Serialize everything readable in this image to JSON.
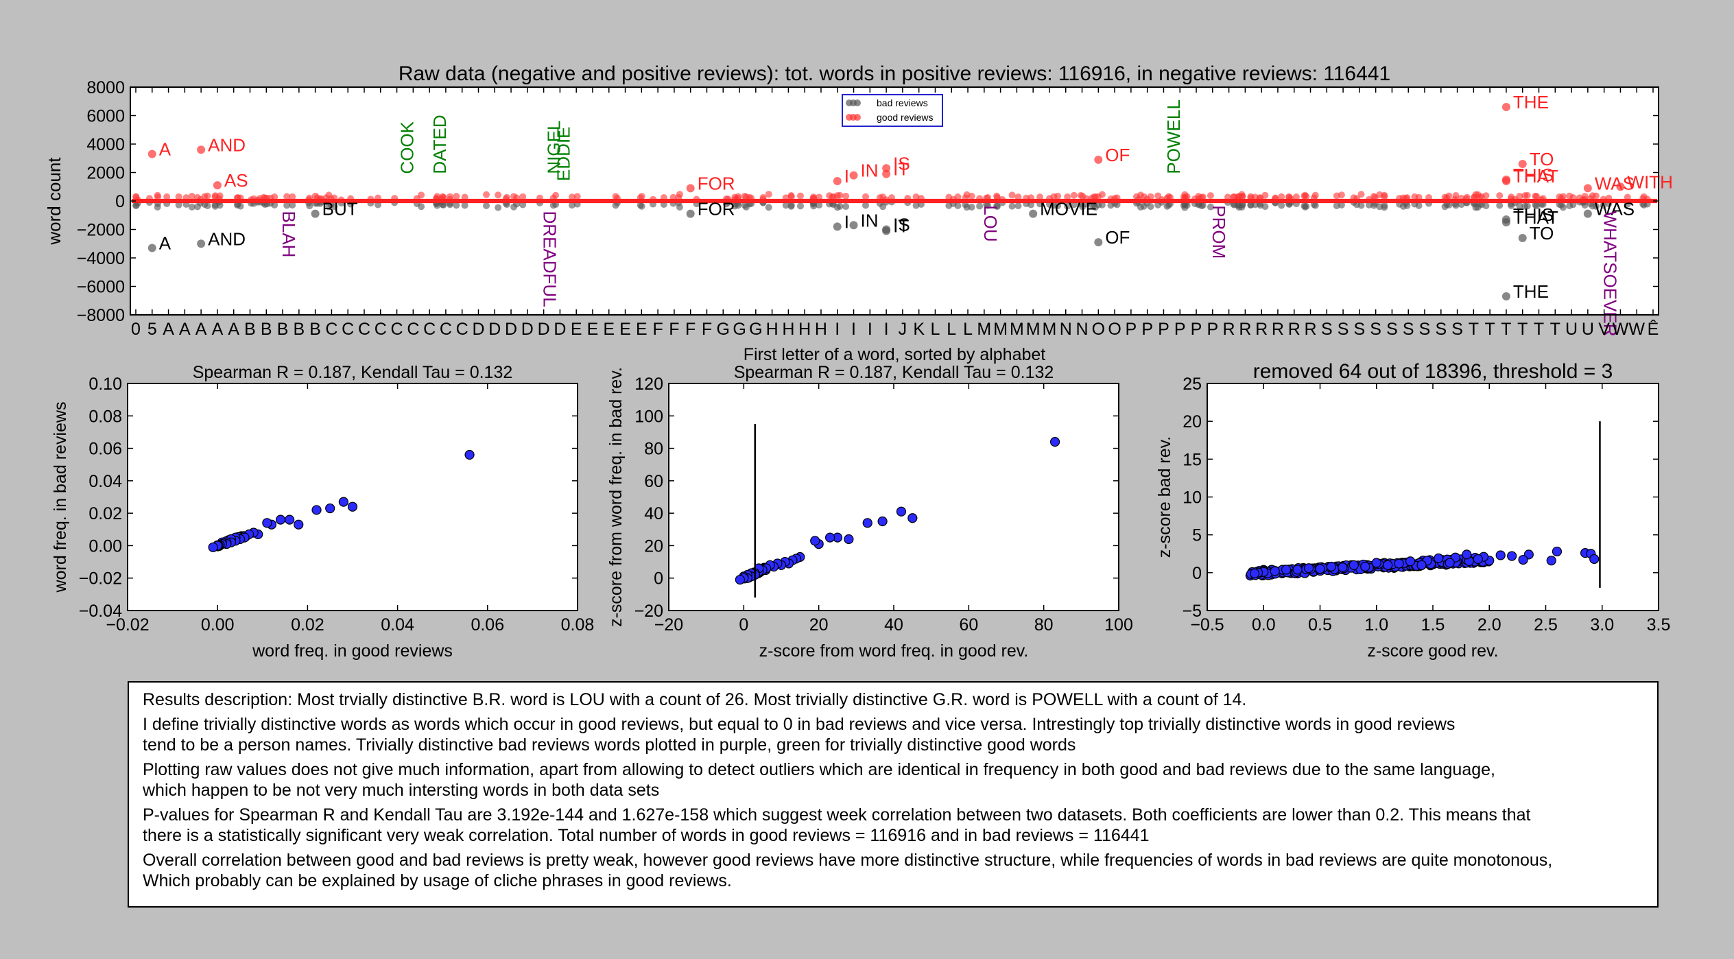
{
  "chart_data": [
    {
      "type": "scatter",
      "title": "Raw data (negative and positive reviews): tot. words in positive reviews: 116916, in negative reviews: 116441",
      "xlabel": "First letter of a word, sorted by alphabet",
      "ylabel": "word count",
      "ylim": [
        -8000,
        8000
      ],
      "yticks": [
        "8000",
        "6000",
        "4000",
        "2000",
        "0",
        "−2000",
        "−4000",
        "−6000",
        "−8000"
      ],
      "xtick_labels": [
        "0",
        "5",
        "A",
        "A",
        "A",
        "A",
        "A",
        "B",
        "B",
        "B",
        "B",
        "B",
        "C",
        "C",
        "C",
        "C",
        "C",
        "C",
        "C",
        "C",
        "C",
        "D",
        "D",
        "D",
        "D",
        "D",
        "D",
        "E",
        "E",
        "E",
        "E",
        "E",
        "F",
        "F",
        "F",
        "F",
        "G",
        "G",
        "G",
        "H",
        "H",
        "H",
        "H",
        "I",
        "I",
        "I",
        "I",
        "J",
        "K",
        "L",
        "L",
        "L",
        "M",
        "M",
        "M",
        "M",
        "M",
        "N",
        "N",
        "O",
        "O",
        "P",
        "P",
        "P",
        "P",
        "P",
        "P",
        "R",
        "R",
        "R",
        "R",
        "R",
        "R",
        "S",
        "S",
        "S",
        "S",
        "S",
        "S",
        "S",
        "S",
        "S",
        "T",
        "T",
        "T",
        "T",
        "T",
        "T",
        "U",
        "U",
        "V",
        "W",
        "W",
        "Ê"
      ],
      "legend": {
        "placement": "top-center",
        "entries": [
          "bad reviews",
          "good reviews"
        ]
      },
      "series_colors": {
        "bad reviews": "#555555",
        "good reviews": "#ff3333"
      },
      "annotations": [
        {
          "text": "A",
          "x": 1,
          "y": 3300,
          "color": "#ff2222"
        },
        {
          "text": "AND",
          "x": 4,
          "y": 3600,
          "color": "#ff2222"
        },
        {
          "text": "AS",
          "x": 5,
          "y": 1100,
          "color": "#ff2222"
        },
        {
          "text": "FOR",
          "x": 34,
          "y": 900,
          "color": "#ff2222"
        },
        {
          "text": "I",
          "x": 43,
          "y": 1400,
          "color": "#ff2222"
        },
        {
          "text": "IN",
          "x": 44,
          "y": 1800,
          "color": "#ff2222"
        },
        {
          "text": "IS",
          "x": 46,
          "y": 2300,
          "color": "#ff2222"
        },
        {
          "text": "IT",
          "x": 46,
          "y": 1900,
          "color": "#ff2222"
        },
        {
          "text": "OF",
          "x": 59,
          "y": 2900,
          "color": "#ff2222"
        },
        {
          "text": "THE",
          "x": 84,
          "y": 6600,
          "color": "#ff2222"
        },
        {
          "text": "TO",
          "x": 85,
          "y": 2600,
          "color": "#ff2222"
        },
        {
          "text": "THIS",
          "x": 84,
          "y": 1500,
          "color": "#ff2222"
        },
        {
          "text": "THAT",
          "x": 84,
          "y": 1400,
          "color": "#ff2222"
        },
        {
          "text": "WAS",
          "x": 89,
          "y": 900,
          "color": "#ff2222"
        },
        {
          "text": "WITH",
          "x": 91,
          "y": 1000,
          "color": "#ff2222"
        },
        {
          "text": "A",
          "x": 1,
          "y": -3300,
          "color": "#000000"
        },
        {
          "text": "AND",
          "x": 4,
          "y": -3000,
          "color": "#000000"
        },
        {
          "text": "BUT",
          "x": 11,
          "y": -900,
          "color": "#000000"
        },
        {
          "text": "FOR",
          "x": 34,
          "y": -900,
          "color": "#000000"
        },
        {
          "text": "I",
          "x": 43,
          "y": -1800,
          "color": "#000000"
        },
        {
          "text": "IN",
          "x": 44,
          "y": -1700,
          "color": "#000000"
        },
        {
          "text": "IS",
          "x": 46,
          "y": -2000,
          "color": "#000000"
        },
        {
          "text": "IT",
          "x": 46,
          "y": -2100,
          "color": "#000000"
        },
        {
          "text": "MOVIE",
          "x": 55,
          "y": -900,
          "color": "#000000"
        },
        {
          "text": "OF",
          "x": 59,
          "y": -2900,
          "color": "#000000"
        },
        {
          "text": "THIS",
          "x": 84,
          "y": -1300,
          "color": "#000000"
        },
        {
          "text": "THAT",
          "x": 84,
          "y": -1500,
          "color": "#000000"
        },
        {
          "text": "TO",
          "x": 85,
          "y": -2600,
          "color": "#000000"
        },
        {
          "text": "THE",
          "x": 84,
          "y": -6700,
          "color": "#000000"
        },
        {
          "text": "WAS",
          "x": 89,
          "y": -900,
          "color": "#000000"
        },
        {
          "text": "BLAH",
          "x": 9,
          "y": -700,
          "color": "#800080",
          "rotate": 90
        },
        {
          "text": "DREADFUL",
          "x": 25,
          "y": -700,
          "color": "#800080",
          "rotate": 90
        },
        {
          "text": "LOU",
          "x": 52,
          "y": -300,
          "color": "#800080",
          "rotate": 90
        },
        {
          "text": "PROM",
          "x": 66,
          "y": -300,
          "color": "#800080",
          "rotate": 90
        },
        {
          "text": "WHATSOEVER",
          "x": 90,
          "y": -700,
          "color": "#800080",
          "rotate": 90
        },
        {
          "text": "COOK",
          "x": 17,
          "y": 1900,
          "color": "#008000",
          "rotate": -90
        },
        {
          "text": "DATED",
          "x": 19,
          "y": 1900,
          "color": "#008000",
          "rotate": -90
        },
        {
          "text": "NIGEL",
          "x": 26,
          "y": 1900,
          "color": "#008000",
          "rotate": -90
        },
        {
          "text": "EDDIE",
          "x": 26.6,
          "y": 1400,
          "color": "#008000",
          "rotate": -90
        },
        {
          "text": "POWELL",
          "x": 64,
          "y": 1900,
          "color": "#008000",
          "rotate": -90
        }
      ]
    },
    {
      "type": "scatter",
      "title": "Spearman R = 0.187, Kendall Tau = 0.132",
      "xlabel": "word freq. in good reviews",
      "ylabel": "word freq. in bad reviews",
      "xlim": [
        -0.02,
        0.08
      ],
      "ylim": [
        -0.04,
        0.1
      ],
      "xticks": [
        "−0.02",
        "0.00",
        "0.02",
        "0.04",
        "0.06",
        "0.08"
      ],
      "yticks": [
        "0.10",
        "0.08",
        "0.06",
        "0.04",
        "0.02",
        "0.00",
        "−0.02",
        "−0.04"
      ],
      "points": [
        [
          0.056,
          0.056
        ],
        [
          0.03,
          0.024
        ],
        [
          0.028,
          0.027
        ],
        [
          0.025,
          0.023
        ],
        [
          0.022,
          0.022
        ],
        [
          0.018,
          0.013
        ],
        [
          0.016,
          0.016
        ],
        [
          0.014,
          0.016
        ],
        [
          0.012,
          0.013
        ],
        [
          0.011,
          0.014
        ],
        [
          0.009,
          0.007
        ],
        [
          0.008,
          0.008
        ],
        [
          0.007,
          0.007
        ],
        [
          0.006,
          0.005
        ],
        [
          0.005,
          0.004
        ],
        [
          0.004,
          0.005
        ],
        [
          0.004,
          0.003
        ],
        [
          0.003,
          0.004
        ],
        [
          0.003,
          0.002
        ],
        [
          0.002,
          0.002
        ],
        [
          0.002,
          0.001
        ],
        [
          0.001,
          0.002
        ],
        [
          0.001,
          0.001
        ],
        [
          0.0005,
          0.0005
        ],
        [
          0.0002,
          0.0002
        ],
        [
          0.0,
          0.0
        ],
        [
          -0.001,
          -0.001
        ]
      ]
    },
    {
      "type": "scatter",
      "title": "Spearman R = 0.187, Kendall Tau = 0.132",
      "xlabel": "z-score from word freq. in good rev.",
      "ylabel": "z-score from word freq. in bad rev.",
      "xlim": [
        -20,
        100
      ],
      "ylim": [
        -20,
        120
      ],
      "xticks": [
        "−20",
        "0",
        "20",
        "40",
        "60",
        "80",
        "100"
      ],
      "yticks": [
        "120",
        "100",
        "80",
        "60",
        "40",
        "20",
        "0",
        "−20"
      ],
      "vline": {
        "x": 3,
        "y": [
          -12,
          95
        ]
      },
      "points": [
        [
          83,
          84
        ],
        [
          45,
          37
        ],
        [
          42,
          41
        ],
        [
          37,
          35
        ],
        [
          33,
          34
        ],
        [
          28,
          24
        ],
        [
          25,
          25
        ],
        [
          23,
          25
        ],
        [
          20,
          21
        ],
        [
          19,
          23
        ],
        [
          15,
          13
        ],
        [
          14,
          12
        ],
        [
          13,
          11
        ],
        [
          12,
          9
        ],
        [
          11,
          10
        ],
        [
          10,
          8
        ],
        [
          9,
          9
        ],
        [
          8,
          7
        ],
        [
          7,
          8
        ],
        [
          6,
          6
        ],
        [
          5,
          5
        ],
        [
          4,
          4
        ],
        [
          4,
          6
        ],
        [
          3,
          3
        ],
        [
          3,
          2
        ],
        [
          2,
          3
        ],
        [
          2,
          1
        ],
        [
          1,
          2
        ],
        [
          1,
          0
        ],
        [
          0,
          1
        ],
        [
          0,
          0
        ],
        [
          -1,
          -1
        ]
      ]
    },
    {
      "type": "scatter",
      "title": "removed 64 out of 18396, threshold = 3",
      "xlabel": "z-score good rev.",
      "ylabel": "z-score bad rev.",
      "xlim": [
        -0.5,
        3.5
      ],
      "ylim": [
        -5,
        25
      ],
      "xticks": [
        "−0.5",
        "0.0",
        "0.5",
        "1.0",
        "1.5",
        "2.0",
        "2.5",
        "3.0",
        "3.5"
      ],
      "yticks": [
        "25",
        "20",
        "15",
        "10",
        "5",
        "0",
        "−5"
      ],
      "vline": {
        "x": 2.98,
        "y": [
          -2,
          20
        ]
      },
      "points": [
        [
          2.85,
          2.6
        ],
        [
          2.9,
          2.5
        ],
        [
          2.93,
          1.8
        ],
        [
          2.6,
          2.8
        ],
        [
          2.55,
          1.6
        ],
        [
          2.35,
          2.4
        ],
        [
          2.3,
          1.7
        ],
        [
          2.2,
          2.2
        ],
        [
          2.1,
          2.3
        ],
        [
          2.0,
          1.6
        ],
        [
          1.95,
          2.1
        ],
        [
          1.9,
          1.8
        ],
        [
          1.8,
          2.4
        ],
        [
          1.7,
          2.0
        ],
        [
          1.65,
          1.3
        ],
        [
          1.55,
          1.9
        ],
        [
          1.45,
          1.6
        ],
        [
          1.4,
          1.0
        ],
        [
          1.3,
          1.5
        ],
        [
          1.2,
          1.2
        ],
        [
          1.1,
          1.0
        ],
        [
          1.0,
          1.3
        ],
        [
          0.9,
          0.8
        ],
        [
          0.8,
          1.0
        ],
        [
          0.7,
          0.7
        ],
        [
          0.6,
          0.8
        ],
        [
          0.5,
          0.5
        ],
        [
          0.4,
          0.6
        ],
        [
          0.3,
          0.4
        ],
        [
          0.2,
          0.4
        ],
        [
          0.1,
          0.2
        ],
        [
          0.0,
          0.1
        ],
        [
          -0.05,
          0.0
        ],
        [
          -0.08,
          -0.1
        ]
      ]
    }
  ],
  "description": {
    "paragraphs": [
      "Results description: Most trvially distinctive B.R. word is LOU with a count of 26. Most trivially distinctive G.R. word is POWELL with a count of 14.",
      "I define trivially distinctive words as words which occur in good reviews, but equal to 0 in bad reviews and vice versa. Intrestingly top trivially distinctive words in good reviews\ntend to be a person names. Trivially distinctive bad reviews words plotted in purple, green for trivially distinctive good words",
      "Plotting raw values does not give much information, apart from allowing to detect outliers which are identical in frequency in both good and bad reviews due to the same language,\nwhich happen to be not very much intersting words in both data sets",
      "P-values for Spearman R and Kendall Tau are 3.192e-144 and 1.627e-158 which suggest week correlation between two datasets. Both coefficients are lower than 0.2. This means that\nthere is a statistically significant very weak correlation. Total number of words in good reviews = 116916 and in bad reviews = 116441",
      "Overall correlation between good and bad reviews is pretty weak, however good reviews have more distinctive structure, while frequencies of words in bad reviews are quite monotonous,\nWhich probably can be explained by usage of cliche phrases in good reviews."
    ]
  }
}
